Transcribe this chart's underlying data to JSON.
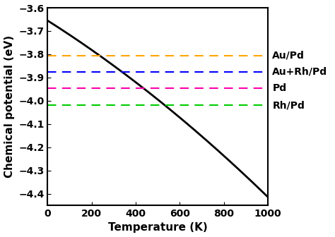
{
  "xlabel": "Temperature (K)",
  "ylabel": "Chemical potential (eV)",
  "xlim": [
    0,
    1000
  ],
  "ylim": [
    -4.45,
    -3.6
  ],
  "yticks": [
    -3.6,
    -3.7,
    -3.8,
    -3.9,
    -4.0,
    -4.1,
    -4.2,
    -4.3,
    -4.4
  ],
  "xticks": [
    0,
    200,
    400,
    600,
    800,
    1000
  ],
  "curve_color": "#000000",
  "curve_mu0": -3.655,
  "curve_a": 0.00028,
  "curve_b": 5.5e-07,
  "hlines": [
    {
      "y": -3.805,
      "color": "#FFA500",
      "label": "Au/Pd"
    },
    {
      "y": -3.875,
      "color": "#0000FF",
      "label": "Au+Rh/Pd"
    },
    {
      "y": -3.945,
      "color": "#FF00AA",
      "label": "Pd"
    },
    {
      "y": -4.02,
      "color": "#00CC00",
      "label": "Rh/Pd"
    }
  ],
  "background_color": "#ffffff",
  "label_fontsize": 11,
  "tick_fontsize": 10,
  "hline_label_fontsize": 10,
  "figsize": [
    4.74,
    3.36
  ],
  "dpi": 100
}
